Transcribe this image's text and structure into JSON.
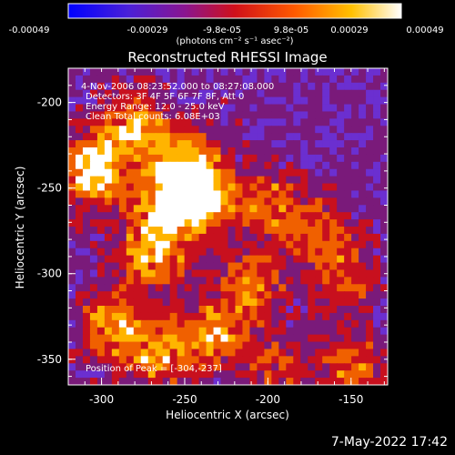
{
  "colorbar": {
    "ticks": [
      "-0.00049",
      "-0.00029",
      "-9.8e-05",
      "9.8e-05",
      "0.00029",
      "0.00049"
    ],
    "units": "(photons cm⁻² s⁻¹ asec⁻²)"
  },
  "title": "Reconstructed RHESSI Image",
  "annotations": {
    "line1": "4-Nov-2006 08:23:52.000 to 08:27:08.000",
    "line2": "Detectors: 3F 4F 5F 6F 7F 8F, Att 0",
    "line3": "Energy Range: 12.0 - 25.0 keV",
    "line4": "Clean   Total counts: 6.08E+03",
    "peak": "Position of Peak = [-304,-237]"
  },
  "axes": {
    "xlabel": "Heliocentric X (arcsec)",
    "ylabel": "Heliocentric Y (arcsec)",
    "xticks": [
      "-300",
      "-250",
      "-200",
      "-150"
    ],
    "yticks": [
      "-200",
      "-250",
      "-300",
      "-350"
    ]
  },
  "footer": {
    "timestamp": "7-May-2022 17:42"
  },
  "chart_data": {
    "type": "heatmap",
    "title": "Reconstructed RHESSI Image",
    "xlabel": "Heliocentric X (arcsec)",
    "ylabel": "Heliocentric Y (arcsec)",
    "xlim": [
      -320,
      -128
    ],
    "ylim": [
      -365,
      -180
    ],
    "clim": [
      -0.00049,
      0.00049
    ],
    "colormap": [
      "#1a1aff",
      "#6b2fd0",
      "#7a1a7a",
      "#c8101e",
      "#f06000",
      "#ffb400",
      "#ffffff"
    ],
    "peak": [
      -304,
      -237
    ],
    "bright_regions": [
      {
        "x": -305,
        "y": -240,
        "level": 1.0
      },
      {
        "x": -280,
        "y": -215,
        "level": 0.75
      },
      {
        "x": -260,
        "y": -260,
        "level": 0.85
      },
      {
        "x": -240,
        "y": -255,
        "level": 0.8
      },
      {
        "x": -250,
        "y": -235,
        "level": 0.7
      },
      {
        "x": -270,
        "y": -290,
        "level": 0.7
      },
      {
        "x": -295,
        "y": -330,
        "level": 0.65
      },
      {
        "x": -265,
        "y": -345,
        "level": 0.7
      },
      {
        "x": -230,
        "y": -335,
        "level": 0.65
      },
      {
        "x": -210,
        "y": -305,
        "level": 0.55
      },
      {
        "x": -200,
        "y": -260,
        "level": 0.5
      },
      {
        "x": -170,
        "y": -275,
        "level": 0.45
      },
      {
        "x": -155,
        "y": -300,
        "level": 0.5
      },
      {
        "x": -150,
        "y": -355,
        "level": 0.5
      },
      {
        "x": -195,
        "y": -355,
        "level": 0.45
      }
    ]
  }
}
